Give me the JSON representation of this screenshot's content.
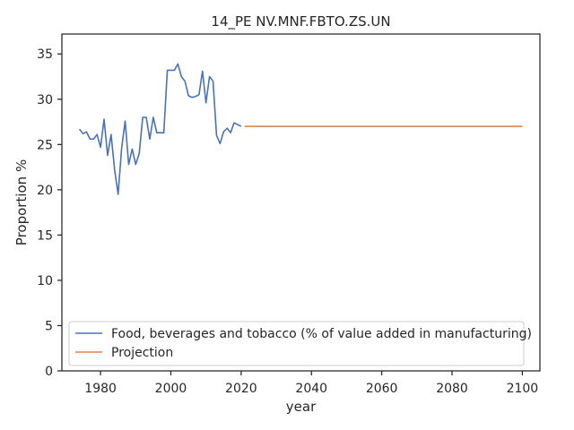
{
  "chart_data": {
    "type": "line",
    "title": "14_PE NV.MNF.FBTO.ZS.UN",
    "xlabel": "year",
    "ylabel": "Proportion %",
    "xlim": [
      1969,
      2105
    ],
    "ylim": [
      0,
      37.2
    ],
    "xticks": [
      1980,
      2000,
      2020,
      2040,
      2060,
      2080,
      2100
    ],
    "yticks": [
      0,
      5,
      10,
      15,
      20,
      25,
      30,
      35
    ],
    "grid": false,
    "legend": "lower-left",
    "series": [
      {
        "name": "Food, beverages and tobacco (% of value added in manufacturing)",
        "color": "#4c72b0",
        "x": [
          1974,
          1975,
          1976,
          1977,
          1978,
          1979,
          1980,
          1981,
          1982,
          1983,
          1984,
          1985,
          1986,
          1987,
          1988,
          1989,
          1990,
          1991,
          1992,
          1993,
          1994,
          1995,
          1996,
          1997,
          1998,
          1999,
          2000,
          2001,
          2002,
          2003,
          2004,
          2005,
          2006,
          2007,
          2008,
          2009,
          2010,
          2011,
          2012,
          2013,
          2014,
          2015,
          2016,
          2017,
          2018,
          2019,
          2020
        ],
        "y": [
          26.7,
          26.2,
          26.4,
          25.6,
          25.6,
          26.1,
          24.7,
          27.8,
          23.8,
          26.1,
          22.2,
          19.5,
          24.6,
          27.6,
          22.8,
          24.5,
          22.8,
          24.0,
          28.0,
          28.0,
          25.6,
          28.0,
          26.3,
          26.3,
          26.3,
          33.2,
          33.2,
          33.2,
          33.9,
          32.5,
          32.0,
          30.4,
          30.2,
          30.3,
          30.5,
          33.1,
          29.6,
          32.5,
          32.0,
          26.0,
          25.1,
          26.4,
          26.8,
          26.3,
          27.4,
          27.2,
          27.0
        ]
      },
      {
        "name": "Projection",
        "color": "#dd8452",
        "x": [
          2021,
          2100
        ],
        "y": [
          27.0,
          27.0
        ]
      }
    ]
  }
}
